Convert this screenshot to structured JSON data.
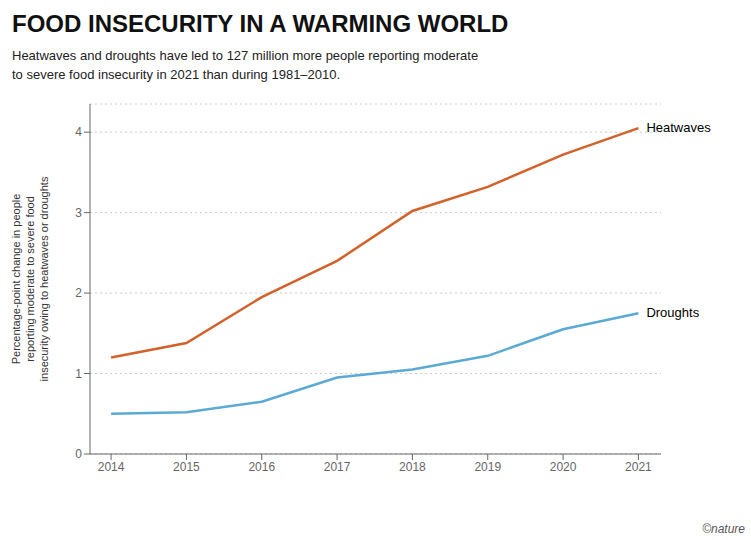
{
  "chart_data": {
    "type": "line",
    "title": "FOOD INSECURITY IN A WARMING WORLD",
    "subtitle": "Heatwaves and droughts have led to 127 million more people reporting moderate\nto severe food insecurity in 2021 than during 1981–2010.",
    "y_label": "Percentage-point change in people\nreporting moderate to severe food\ninsecurity owing to heatwaves or droughts",
    "x": [
      2014,
      2015,
      2016,
      2017,
      2018,
      2019,
      2020,
      2021
    ],
    "series": [
      {
        "name": "Heatwaves",
        "color": "#D2622A",
        "values": [
          1.2,
          1.38,
          1.95,
          2.4,
          3.02,
          3.32,
          3.72,
          4.05
        ]
      },
      {
        "name": "Droughts",
        "color": "#5BAAD4",
        "values": [
          0.5,
          0.52,
          0.65,
          0.95,
          1.05,
          1.22,
          1.55,
          1.75
        ]
      }
    ],
    "xlim": [
      2013.72,
      2021.3
    ],
    "xticks": [
      2014,
      2015,
      2016,
      2017,
      2018,
      2019,
      2020,
      2021
    ],
    "ylim": [
      0,
      4.35
    ],
    "yticks": [
      0,
      1,
      2,
      3,
      4
    ],
    "grid": true,
    "annotations": [
      {
        "text": "©nature"
      }
    ]
  }
}
